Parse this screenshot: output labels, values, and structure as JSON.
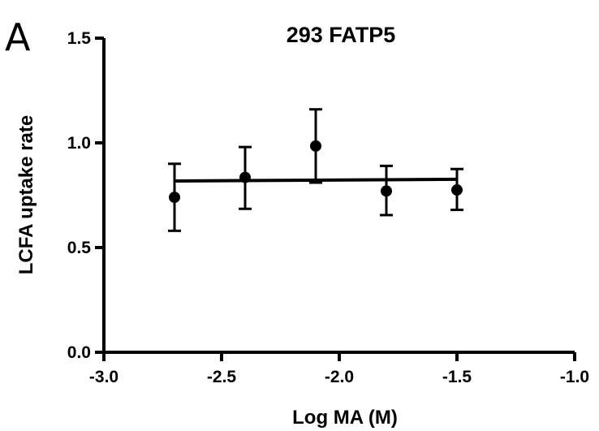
{
  "panel_label": "A",
  "chart_data": {
    "type": "scatter",
    "title": "293 FATP5",
    "xlabel": "Log MA (M)",
    "ylabel": "LCFA uptake rate",
    "xlim": [
      -3.0,
      -1.0
    ],
    "ylim": [
      0.0,
      1.5
    ],
    "x_ticks": [
      -3.0,
      -2.5,
      -2.0,
      -1.5,
      -1.0
    ],
    "y_ticks": [
      0.0,
      0.5,
      1.0,
      1.5
    ],
    "x_tick_labels": [
      "-3.0",
      "-2.5",
      "-2.0",
      "-1.5",
      "-1.0"
    ],
    "y_tick_labels": [
      "0.0",
      "0.5",
      "1.0",
      "1.5"
    ],
    "grid": false,
    "points": [
      {
        "x": -2.7,
        "y": 0.74,
        "err_low": 0.58,
        "err_high": 0.9
      },
      {
        "x": -2.4,
        "y": 0.835,
        "err_low": 0.685,
        "err_high": 0.98
      },
      {
        "x": -2.1,
        "y": 0.985,
        "err_low": 0.81,
        "err_high": 1.16
      },
      {
        "x": -1.8,
        "y": 0.77,
        "err_low": 0.655,
        "err_high": 0.89
      },
      {
        "x": -1.5,
        "y": 0.775,
        "err_low": 0.68,
        "err_high": 0.875
      }
    ],
    "fit_line": {
      "x": [
        -2.7,
        -1.5
      ],
      "y": [
        0.818,
        0.826
      ]
    },
    "color": "#000000"
  }
}
